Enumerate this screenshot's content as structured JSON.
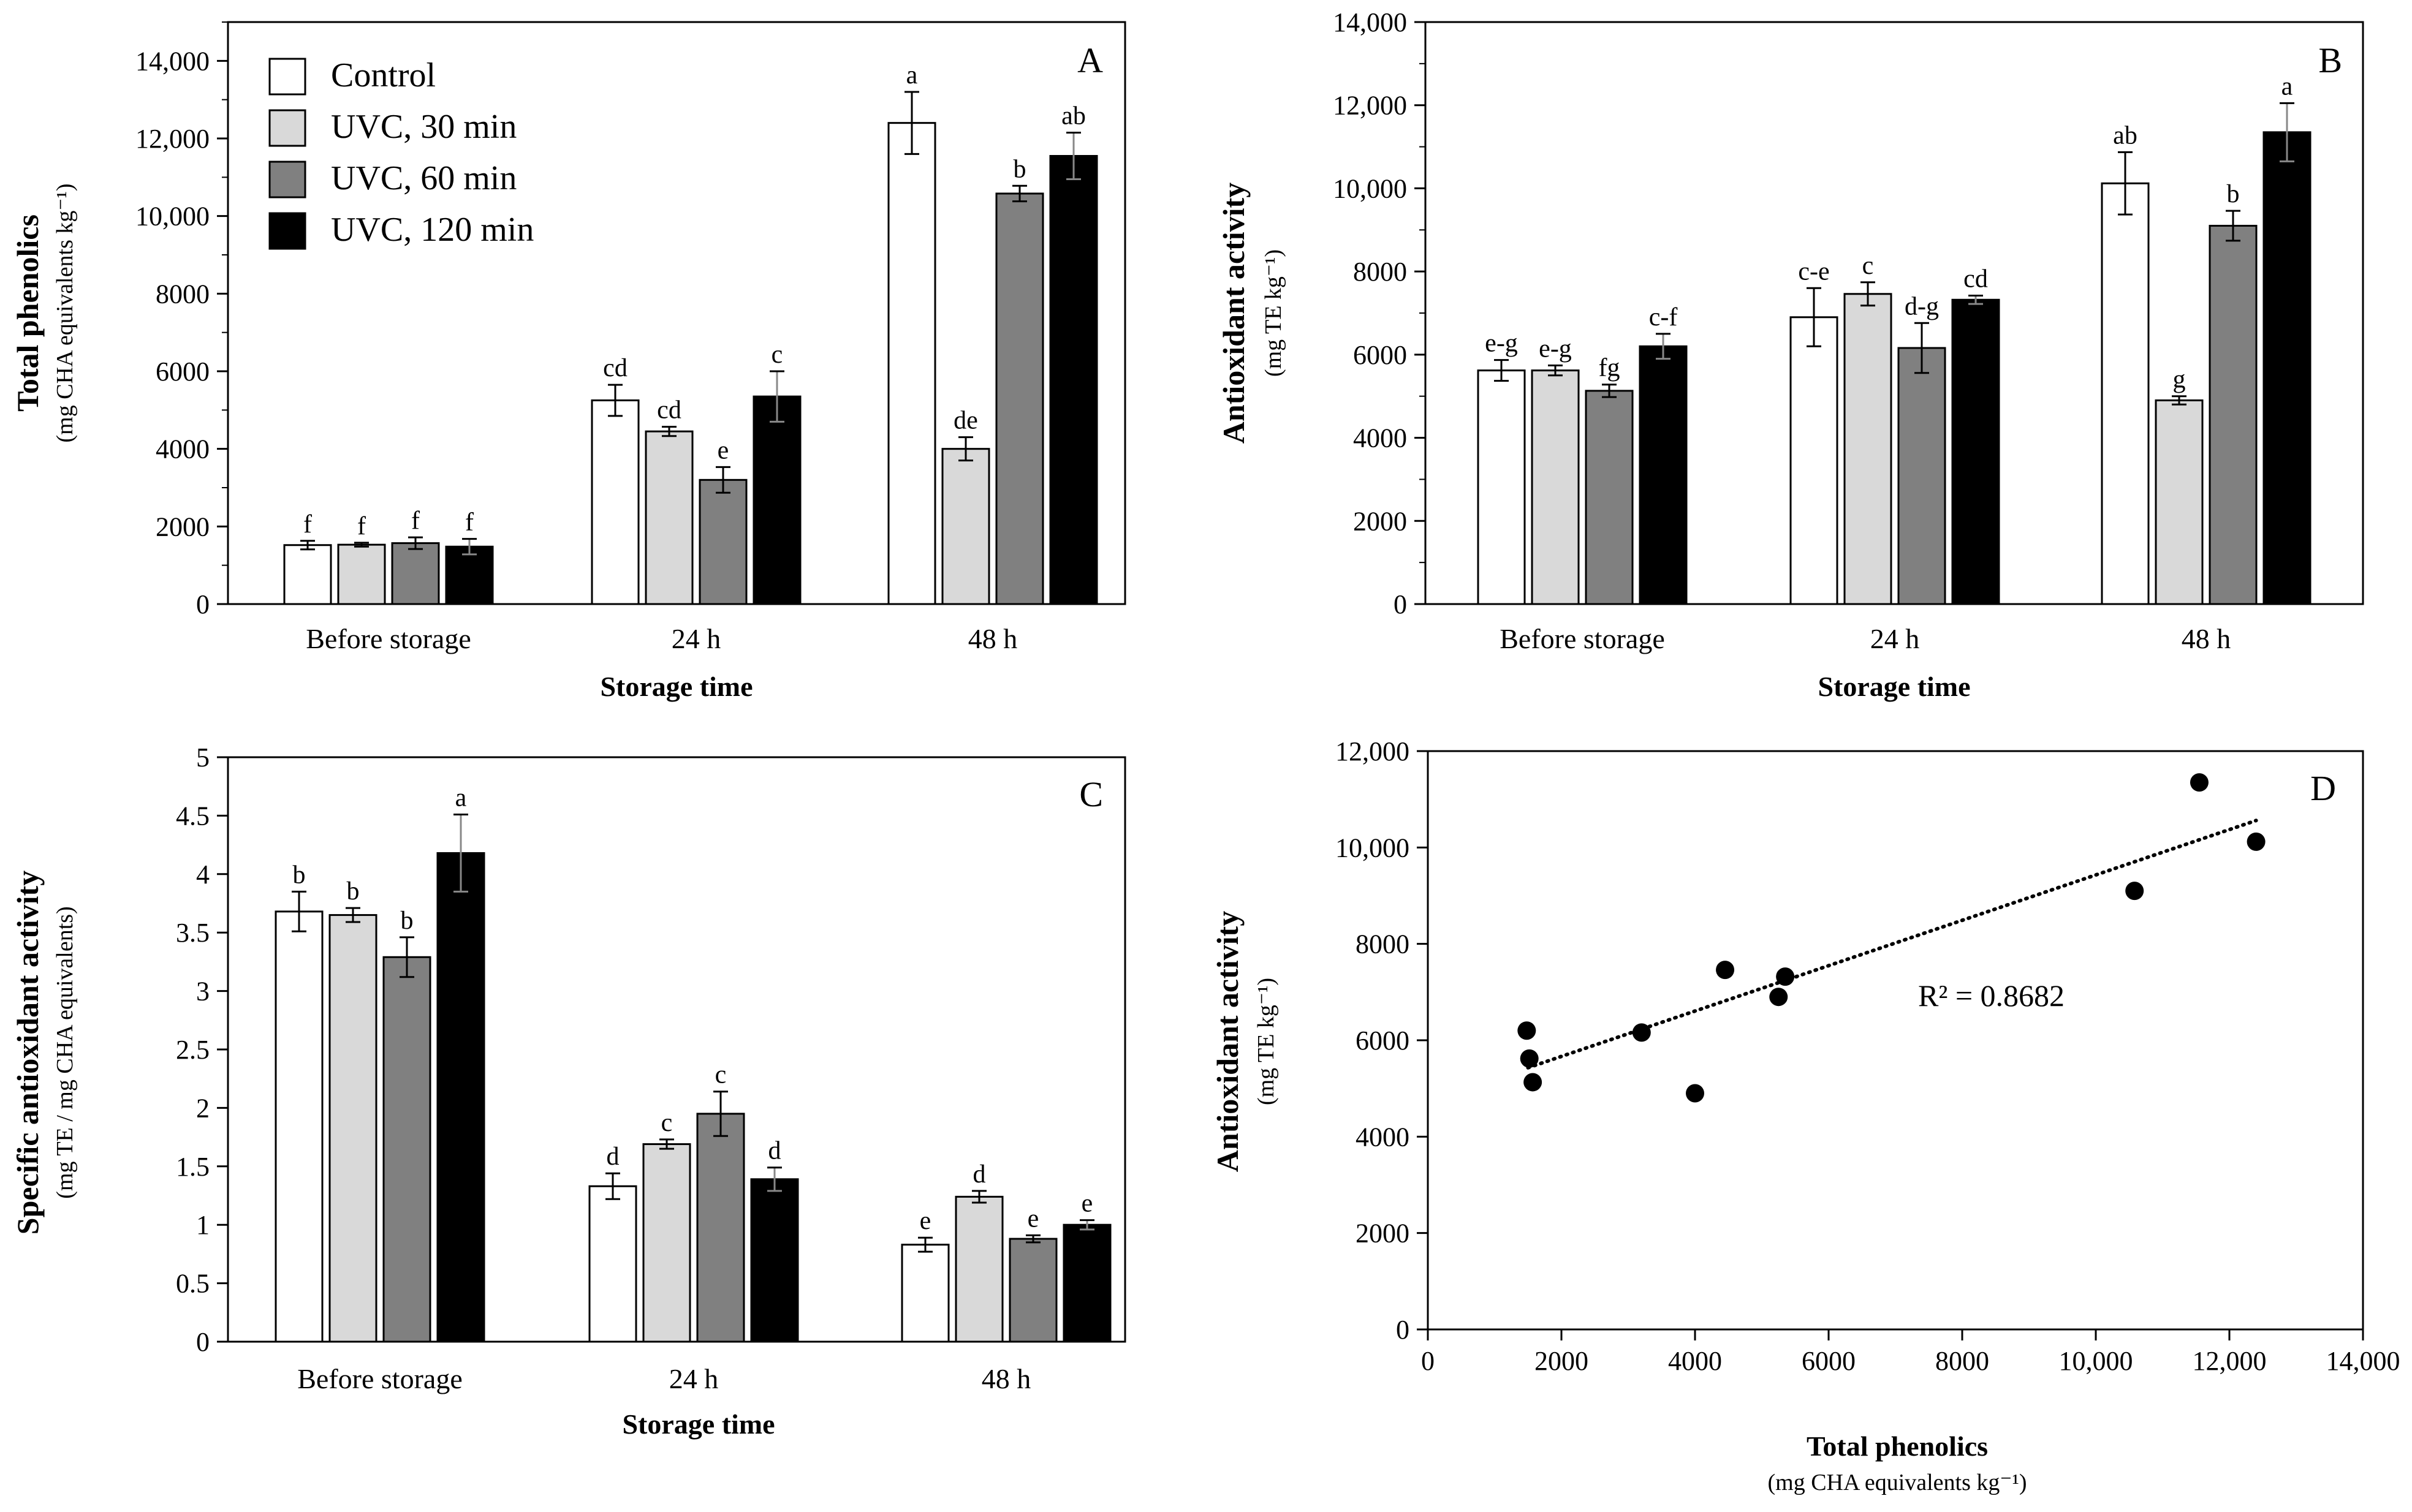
{
  "colors": {
    "control": "#ffffff",
    "uvc30": "#d9d9d9",
    "uvc60": "#808080",
    "uvc120": "#000000"
  },
  "legend": [
    {
      "name": "Control",
      "color": "#ffffff"
    },
    {
      "name": "UVC, 30 min",
      "color": "#d9d9d9"
    },
    {
      "name": "UVC, 60 min",
      "color": "#808080"
    },
    {
      "name": "UVC, 120 min",
      "color": "#000000"
    }
  ],
  "chart_data": [
    {
      "type": "bar",
      "panel": "A",
      "title": "",
      "xlabel": "Storage time",
      "ylabel": "Total phenolics",
      "ylabel_sub": "(mg CHA equivalents kg⁻¹)",
      "categories": [
        "Before storage",
        "24 h",
        "48 h"
      ],
      "ylim": [
        0,
        15000
      ],
      "yticks": [
        0,
        2000,
        4000,
        6000,
        8000,
        10000,
        12000,
        14000
      ],
      "ytick_labels": [
        "0",
        "2000",
        "4000",
        "6000",
        "8000",
        "10,000",
        "12,000",
        "14,000"
      ],
      "series": [
        {
          "name": "Control",
          "values": [
            1520,
            5250,
            12400
          ],
          "errors": [
            110,
            400,
            800
          ],
          "labels": [
            "f",
            "cd",
            "a"
          ]
        },
        {
          "name": "UVC, 30 min",
          "values": [
            1530,
            4450,
            4000
          ],
          "errors": [
            50,
            120,
            300
          ],
          "labels": [
            "f",
            "cd",
            "de"
          ]
        },
        {
          "name": "UVC, 60 min",
          "values": [
            1570,
            3200,
            10580
          ],
          "errors": [
            150,
            330,
            200
          ],
          "labels": [
            "f",
            "e",
            "b"
          ]
        },
        {
          "name": "UVC, 120 min",
          "values": [
            1480,
            5350,
            11550
          ],
          "errors": [
            200,
            650,
            600
          ],
          "labels": [
            "f",
            "c",
            "ab"
          ]
        }
      ]
    },
    {
      "type": "bar",
      "panel": "B",
      "title": "",
      "xlabel": "Storage time",
      "ylabel": "Antioxidant activity",
      "ylabel_sub": "(mg TE  kg⁻¹)",
      "categories": [
        "Before storage",
        "24 h",
        "48 h"
      ],
      "ylim": [
        0,
        14000
      ],
      "yticks": [
        0,
        2000,
        4000,
        6000,
        8000,
        10000,
        12000,
        14000
      ],
      "ytick_labels": [
        "0",
        "2000",
        "4000",
        "6000",
        "8000",
        "10,000",
        "12,000",
        "14,000"
      ],
      "series": [
        {
          "name": "Control",
          "values": [
            5620,
            6900,
            10120
          ],
          "errors": [
            250,
            700,
            750
          ],
          "labels": [
            "e-g",
            "c-e",
            "ab"
          ]
        },
        {
          "name": "UVC, 30 min",
          "values": [
            5620,
            7460,
            4900
          ],
          "errors": [
            120,
            280,
            100
          ],
          "labels": [
            "e-g",
            "c",
            "g"
          ]
        },
        {
          "name": "UVC, 60 min",
          "values": [
            5130,
            6160,
            9100
          ],
          "errors": [
            150,
            600,
            360
          ],
          "labels": [
            "fg",
            "d-g",
            "b"
          ]
        },
        {
          "name": "UVC, 120 min",
          "values": [
            6200,
            7320,
            11350
          ],
          "errors": [
            300,
            100,
            700
          ],
          "labels": [
            "c-f",
            "cd",
            "a"
          ]
        }
      ]
    },
    {
      "type": "bar",
      "panel": "C",
      "title": "",
      "xlabel": "Storage time",
      "ylabel": "Specific antioxidant activity",
      "ylabel_sub": "(mg TE / mg CHA equivalents)",
      "categories": [
        "Before storage",
        "24 h",
        "48 h"
      ],
      "ylim": [
        0,
        5
      ],
      "yticks": [
        0,
        0.5,
        1,
        1.5,
        2,
        2.5,
        3,
        3.5,
        4,
        4.5,
        5
      ],
      "ytick_labels": [
        "0",
        "0.5",
        "1",
        "1.5",
        "2",
        "2.5",
        "3",
        "3.5",
        "4",
        "4.5",
        "5"
      ],
      "series": [
        {
          "name": "Control",
          "values": [
            3.68,
            1.33,
            0.83
          ],
          "errors": [
            0.17,
            0.11,
            0.06
          ],
          "labels": [
            "b",
            "d",
            "e"
          ]
        },
        {
          "name": "UVC, 30 min",
          "values": [
            3.65,
            1.69,
            1.24
          ],
          "errors": [
            0.06,
            0.04,
            0.05
          ],
          "labels": [
            "b",
            "c",
            "d"
          ]
        },
        {
          "name": "UVC, 60 min",
          "values": [
            3.29,
            1.95,
            0.88
          ],
          "errors": [
            0.17,
            0.19,
            0.03
          ],
          "labels": [
            "b",
            "c",
            "e"
          ]
        },
        {
          "name": "UVC, 120 min",
          "values": [
            4.18,
            1.39,
            1.0
          ],
          "errors": [
            0.33,
            0.1,
            0.04
          ],
          "labels": [
            "a",
            "d",
            "e"
          ]
        }
      ]
    },
    {
      "type": "scatter",
      "panel": "D",
      "title": "",
      "xlabel": "Total phenolics",
      "xlabel_sub": "(mg CHA equivalents kg⁻¹)",
      "ylabel": "Antioxidant activity",
      "ylabel_sub": "(mg TE kg⁻¹)",
      "xlim": [
        0,
        14000
      ],
      "ylim": [
        0,
        12000
      ],
      "xticks": [
        0,
        2000,
        4000,
        6000,
        8000,
        10000,
        12000,
        14000
      ],
      "xtick_labels": [
        "0",
        "2000",
        "4000",
        "6000",
        "8000",
        "10,000",
        "12,000",
        "14,000"
      ],
      "yticks": [
        0,
        2000,
        4000,
        6000,
        8000,
        10000,
        12000
      ],
      "ytick_labels": [
        "0",
        "2000",
        "4000",
        "6000",
        "8000",
        "10,000",
        "12,000"
      ],
      "points": [
        {
          "x": 1480,
          "y": 6200
        },
        {
          "x": 1520,
          "y": 5620
        },
        {
          "x": 1570,
          "y": 5130
        },
        {
          "x": 3200,
          "y": 6160
        },
        {
          "x": 4000,
          "y": 4900
        },
        {
          "x": 4450,
          "y": 7460
        },
        {
          "x": 5250,
          "y": 6900
        },
        {
          "x": 5350,
          "y": 7320
        },
        {
          "x": 10580,
          "y": 9100
        },
        {
          "x": 11550,
          "y": 11350
        },
        {
          "x": 12400,
          "y": 10120
        }
      ],
      "trendline": {
        "x": [
          1500,
          12400
        ],
        "y": [
          5430,
          10560
        ],
        "style": "dotted"
      },
      "annotation": "R² = 0.8682"
    }
  ]
}
